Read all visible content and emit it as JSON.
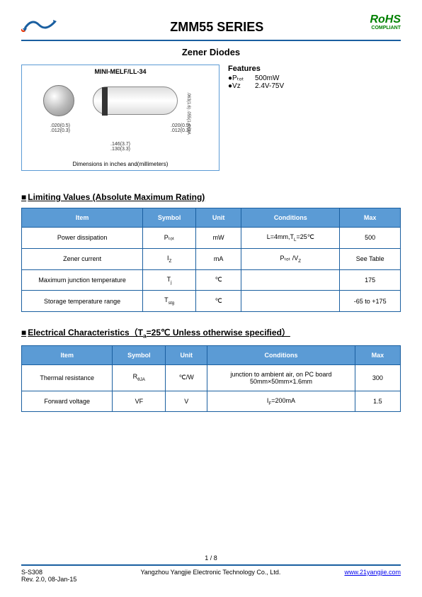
{
  "header": {
    "title": "ZMM55 SERIES",
    "rohs": "RoHS",
    "rohs_sub": "COMPLIANT",
    "subtitle": "Zener Diodes"
  },
  "diagram": {
    "label": "MINI-MELF/LL-34",
    "dim1_a": ".020(0.5)",
    "dim1_b": ".012(0.3)",
    "dim2_a": ".146(3.7)",
    "dim2_b": ".130(3.3)",
    "dim3_a": ".020(0.5)",
    "dim3_b": ".012(0.3)",
    "dim4_a": ".063(1.6)",
    "dim4_b": ".055(1.4)DIA",
    "caption": "Dimensions in inches and(millimeters)"
  },
  "features": {
    "title": "Features",
    "rows": [
      {
        "sym": "●Pₜₒₜ",
        "val": "500mW"
      },
      {
        "sym": "●Vz",
        "val": "2.4V-75V"
      }
    ]
  },
  "section1": {
    "title": "Limiting Values (Absolute Maximum Rating)",
    "columns": [
      "Item",
      "Symbol",
      "Unit",
      "Conditions",
      "Max"
    ],
    "rows": [
      [
        "Power dissipation",
        "Pₜₒₜ",
        "mW",
        "L=4mm,T<sub>L</sub>=25℃",
        "500"
      ],
      [
        "Zener current",
        "I<sub>Z</sub>",
        "mA",
        "Pₜₒₜ /V<sub>Z</sub>",
        "See Table"
      ],
      [
        "Maximum junction temperature",
        "T<sub>j</sub>",
        "℃",
        "",
        "175"
      ],
      [
        "Storage temperature range",
        "T<sub>stg</sub>",
        "℃",
        "",
        "-65 to +175"
      ]
    ],
    "col_widths": [
      "32%",
      "14%",
      "12%",
      "26%",
      "16%"
    ]
  },
  "section2": {
    "title": "Electrical Characteristics（T<sub>a</sub>=25℃ Unless otherwise specified）",
    "columns": [
      "Item",
      "Symbol",
      "Unit",
      "Conditions",
      "Max"
    ],
    "rows": [
      [
        "Thermal resistance",
        "R<sub>θJA</sub>",
        "℃/W",
        "junction to ambient air, on PC board 50mm×50mm×1.6mm",
        "300"
      ],
      [
        "Forward voltage",
        "VF",
        "V",
        "I<sub>F</sub>=200mA",
        "1.5"
      ]
    ],
    "col_widths": [
      "24%",
      "14%",
      "11%",
      "39%",
      "12%"
    ]
  },
  "footer": {
    "page": "1 / 8",
    "left_a": "S-S308",
    "left_b": "Rev. 2.0, 08-Jan-15",
    "center": "Yangzhou Yangjie Electronic Technology Co., Ltd.",
    "right": "www.21yangjie.com"
  },
  "colors": {
    "brand_blue": "#1a5fa0",
    "table_header_bg": "#5b9bd5",
    "rohs_green": "#008000"
  }
}
